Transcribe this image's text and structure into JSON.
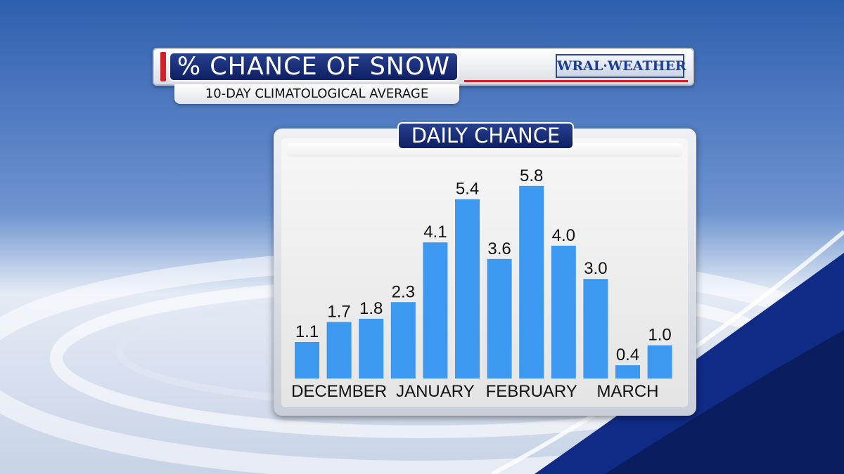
{
  "header": {
    "title": "% CHANCE OF SNOW",
    "subtitle": "10-DAY CLIMATOLOGICAL AVERAGE",
    "logo_text": "WRAL·WEATHER"
  },
  "colors": {
    "bar": "#3d98f0",
    "title_blue": "#1a2f7a",
    "accent_red": "#d0202a"
  },
  "chart_data": {
    "type": "bar",
    "title": "DAILY CHANCE",
    "xlabel": "",
    "ylabel": "",
    "ylim": [
      0,
      6.6
    ],
    "grid": false,
    "values": [
      1.1,
      1.7,
      1.8,
      2.3,
      4.1,
      5.4,
      3.6,
      5.8,
      4.0,
      3.0,
      0.4,
      1.0
    ],
    "data_labels": [
      "1.1",
      "1.7",
      "1.8",
      "2.3",
      "4.1",
      "5.4",
      "3.6",
      "5.8",
      "4.0",
      "3.0",
      "0.4",
      "1.0"
    ],
    "month_labels": [
      "DECEMBER",
      "JANUARY",
      "FEBRUARY",
      "MARCH"
    ]
  }
}
